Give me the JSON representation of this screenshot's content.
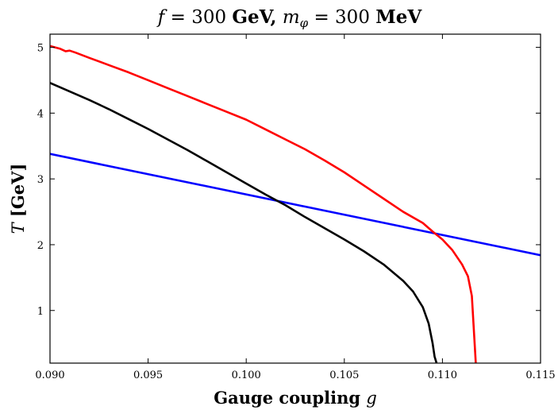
{
  "chart_data": {
    "type": "line",
    "title": {
      "f_var": "f",
      "f_eq": " = 300 ",
      "f_unit": "GeV,",
      "m_var": "m",
      "m_sub": "φ",
      "m_eq": " = 300 ",
      "m_unit": "MeV"
    },
    "xlabel": {
      "text": "Gauge coupling ",
      "var": "g"
    },
    "ylabel": {
      "var": "T",
      "unit": " [GeV]"
    },
    "xlim": [
      0.09,
      0.115
    ],
    "ylim": [
      0.2,
      5.2
    ],
    "grid": false,
    "xticks": [
      0.09,
      0.095,
      0.1,
      0.105,
      0.11,
      0.115
    ],
    "xtick_labels": [
      "0.090",
      "0.095",
      "0.100",
      "0.105",
      "0.110",
      "0.115"
    ],
    "yticks": [
      1,
      2,
      3,
      4,
      5
    ],
    "ytick_labels": [
      "1",
      "2",
      "3",
      "4",
      "5"
    ],
    "series": [
      {
        "color": "#0000ff",
        "points": [
          [
            0.09,
            3.38
          ],
          [
            0.115,
            1.84
          ]
        ]
      },
      {
        "color": "#ff0000",
        "points": [
          [
            0.09,
            5.02
          ],
          [
            0.0905,
            4.98
          ],
          [
            0.0908,
            4.94
          ],
          [
            0.091,
            4.95
          ],
          [
            0.0913,
            4.92
          ],
          [
            0.092,
            4.84
          ],
          [
            0.093,
            4.73
          ],
          [
            0.094,
            4.62
          ],
          [
            0.095,
            4.5
          ],
          [
            0.096,
            4.38
          ],
          [
            0.097,
            4.26
          ],
          [
            0.098,
            4.14
          ],
          [
            0.099,
            4.02
          ],
          [
            0.1,
            3.9
          ],
          [
            0.101,
            3.75
          ],
          [
            0.102,
            3.6
          ],
          [
            0.103,
            3.45
          ],
          [
            0.104,
            3.28
          ],
          [
            0.105,
            3.1
          ],
          [
            0.106,
            2.9
          ],
          [
            0.107,
            2.7
          ],
          [
            0.108,
            2.5
          ],
          [
            0.109,
            2.33
          ],
          [
            0.1095,
            2.2
          ],
          [
            0.11,
            2.08
          ],
          [
            0.1105,
            1.92
          ],
          [
            0.111,
            1.7
          ],
          [
            0.1113,
            1.52
          ],
          [
            0.1115,
            1.22
          ],
          [
            0.1117,
            0.2
          ]
        ]
      },
      {
        "color": "#000000",
        "points": [
          [
            0.09,
            4.46
          ],
          [
            0.091,
            4.33
          ],
          [
            0.092,
            4.2
          ],
          [
            0.093,
            4.06
          ],
          [
            0.094,
            3.91
          ],
          [
            0.095,
            3.76
          ],
          [
            0.096,
            3.6
          ],
          [
            0.097,
            3.44
          ],
          [
            0.098,
            3.27
          ],
          [
            0.099,
            3.1
          ],
          [
            0.1,
            2.93
          ],
          [
            0.101,
            2.76
          ],
          [
            0.102,
            2.6
          ],
          [
            0.103,
            2.42
          ],
          [
            0.104,
            2.25
          ],
          [
            0.105,
            2.08
          ],
          [
            0.106,
            1.9
          ],
          [
            0.107,
            1.7
          ],
          [
            0.108,
            1.45
          ],
          [
            0.1085,
            1.29
          ],
          [
            0.109,
            1.05
          ],
          [
            0.1093,
            0.8
          ],
          [
            0.1095,
            0.5
          ],
          [
            0.1096,
            0.3
          ],
          [
            0.1097,
            0.2
          ]
        ]
      }
    ]
  }
}
